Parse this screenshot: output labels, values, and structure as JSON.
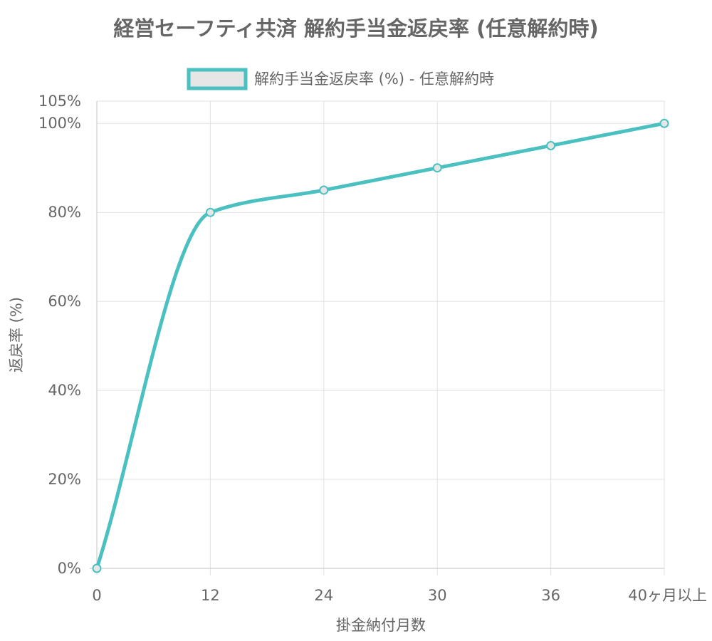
{
  "chart_data": {
    "type": "line",
    "title": "経営セーフティ共済 解約手当金返戻率 (任意解約時)",
    "xlabel": "掛金納付月数",
    "ylabel": "返戻率 (%)",
    "categories": [
      "0",
      "12",
      "24",
      "30",
      "36",
      "40ヶ月以上"
    ],
    "series": [
      {
        "name": "解約手当金返戻率 (%) - 任意解約時",
        "values": [
          0,
          80,
          85,
          90,
          95,
          100
        ],
        "color": "#4bc0c0",
        "fill": "#e6e6e6"
      }
    ],
    "ylim": [
      0,
      105
    ],
    "yticks": [
      0,
      20,
      40,
      60,
      80,
      100,
      105
    ],
    "ytick_labels": [
      "0%",
      "20%",
      "40%",
      "60%",
      "80%",
      "100%",
      "105%"
    ],
    "grid": true,
    "legend": "top"
  }
}
